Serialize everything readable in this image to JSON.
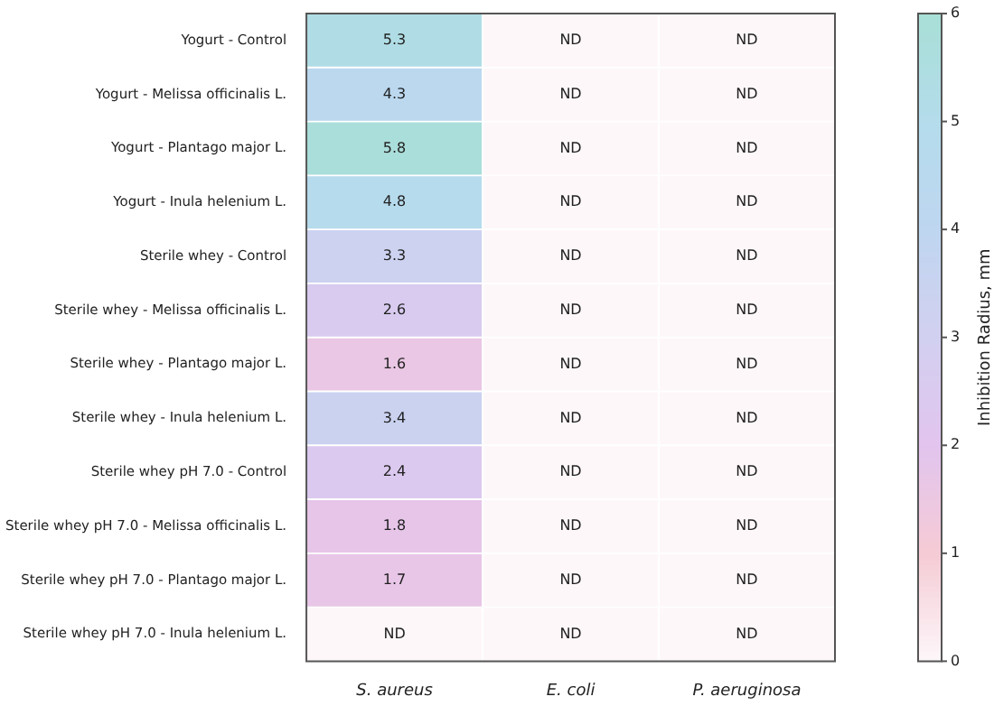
{
  "chart_data": {
    "type": "heatmap",
    "clabel": "Inhibition Radius, mm",
    "categories": [
      "S. aureus",
      "E. coli",
      "P. aeruginosa"
    ],
    "y_categories": [
      "Yogurt - Control",
      "Yogurt - Melissa officinalis L.",
      "Yogurt - Plantago major L.",
      "Yogurt - Inula helenium L.",
      "Sterile whey - Control",
      "Sterile whey - Melissa officinalis L.",
      "Sterile whey - Plantago major L.",
      "Sterile whey - Inula helenium L.",
      "Sterile whey pH 7.0 - Control",
      "Sterile whey pH 7.0 - Melissa officinalis L.",
      "Sterile whey pH 7.0 - Plantago major L.",
      "Sterile whey pH 7.0 - Inula helenium L."
    ],
    "cells": [
      [
        5.3,
        0,
        0
      ],
      [
        4.3,
        0,
        0
      ],
      [
        5.8,
        0,
        0
      ],
      [
        4.8,
        0,
        0
      ],
      [
        3.3,
        0,
        0
      ],
      [
        2.6,
        0,
        0
      ],
      [
        1.6,
        0,
        0
      ],
      [
        3.4,
        0,
        0
      ],
      [
        2.4,
        0,
        0
      ],
      [
        1.8,
        0,
        0
      ],
      [
        1.7,
        0,
        0
      ],
      [
        0,
        0,
        0
      ]
    ],
    "cell_labels": [
      [
        "5.3",
        "ND",
        "ND"
      ],
      [
        "4.3",
        "ND",
        "ND"
      ],
      [
        "5.8",
        "ND",
        "ND"
      ],
      [
        "4.8",
        "ND",
        "ND"
      ],
      [
        "3.3",
        "ND",
        "ND"
      ],
      [
        "2.6",
        "ND",
        "ND"
      ],
      [
        "1.6",
        "ND",
        "ND"
      ],
      [
        "3.4",
        "ND",
        "ND"
      ],
      [
        "2.4",
        "ND",
        "ND"
      ],
      [
        "1.8",
        "ND",
        "ND"
      ],
      [
        "1.7",
        "ND",
        "ND"
      ],
      [
        "ND",
        "ND",
        "ND"
      ]
    ],
    "clim": [
      0,
      6
    ],
    "cticks": [
      0,
      1,
      2,
      3,
      4,
      5,
      6
    ]
  }
}
